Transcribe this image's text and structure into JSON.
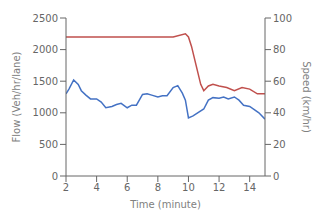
{
  "chart_data": {
    "type": "line",
    "xlabel": "Time (minute)",
    "ylabel": "Flow (Veh/hr/lane)",
    "y2label": "Speed (km/hr)",
    "xlim": [
      2,
      15
    ],
    "xticks": [
      2,
      4,
      6,
      8,
      10,
      12,
      14
    ],
    "ylim": [
      0,
      2500
    ],
    "yticks": [
      0,
      500,
      1000,
      1500,
      2000,
      2500
    ],
    "y2lim": [
      0,
      100
    ],
    "y2ticks": [
      0,
      20,
      40,
      60,
      80,
      100
    ],
    "grid": false,
    "series": [
      {
        "color": "#4472C4",
        "axis": "y",
        "x": [
          2.0,
          2.2,
          2.5,
          2.8,
          3.0,
          3.3,
          3.6,
          4.0,
          4.3,
          4.6,
          5.0,
          5.3,
          5.6,
          6.0,
          6.3,
          6.6,
          7.0,
          7.3,
          7.6,
          8.0,
          8.3,
          8.6,
          9.0,
          9.3,
          9.6,
          9.8,
          10.0,
          10.3,
          10.6,
          11.0,
          11.3,
          11.6,
          12.0,
          12.3,
          12.6,
          13.0,
          13.3,
          13.6,
          14.0,
          14.3,
          14.6,
          15.0
        ],
        "values": [
          1300,
          1380,
          1520,
          1450,
          1350,
          1280,
          1220,
          1220,
          1170,
          1080,
          1100,
          1130,
          1150,
          1080,
          1120,
          1120,
          1290,
          1300,
          1280,
          1250,
          1270,
          1270,
          1400,
          1430,
          1310,
          1200,
          920,
          950,
          1000,
          1060,
          1200,
          1240,
          1230,
          1250,
          1220,
          1250,
          1200,
          1120,
          1100,
          1050,
          1000,
          900
        ]
      },
      {
        "color": "#C0504D",
        "axis": "y2",
        "x": [
          2.0,
          2.5,
          3.0,
          4.0,
          5.0,
          6.0,
          7.0,
          8.0,
          9.0,
          9.8,
          10.0,
          10.2,
          10.5,
          10.8,
          11.0,
          11.3,
          11.6,
          12.0,
          12.5,
          13.0,
          13.5,
          14.0,
          14.5,
          15.0
        ],
        "values": [
          88,
          88,
          88,
          88,
          88,
          88,
          88,
          88,
          88,
          90,
          88,
          82,
          70,
          58,
          54,
          57,
          58,
          57,
          56,
          54,
          56,
          55,
          52,
          52
        ]
      }
    ]
  }
}
